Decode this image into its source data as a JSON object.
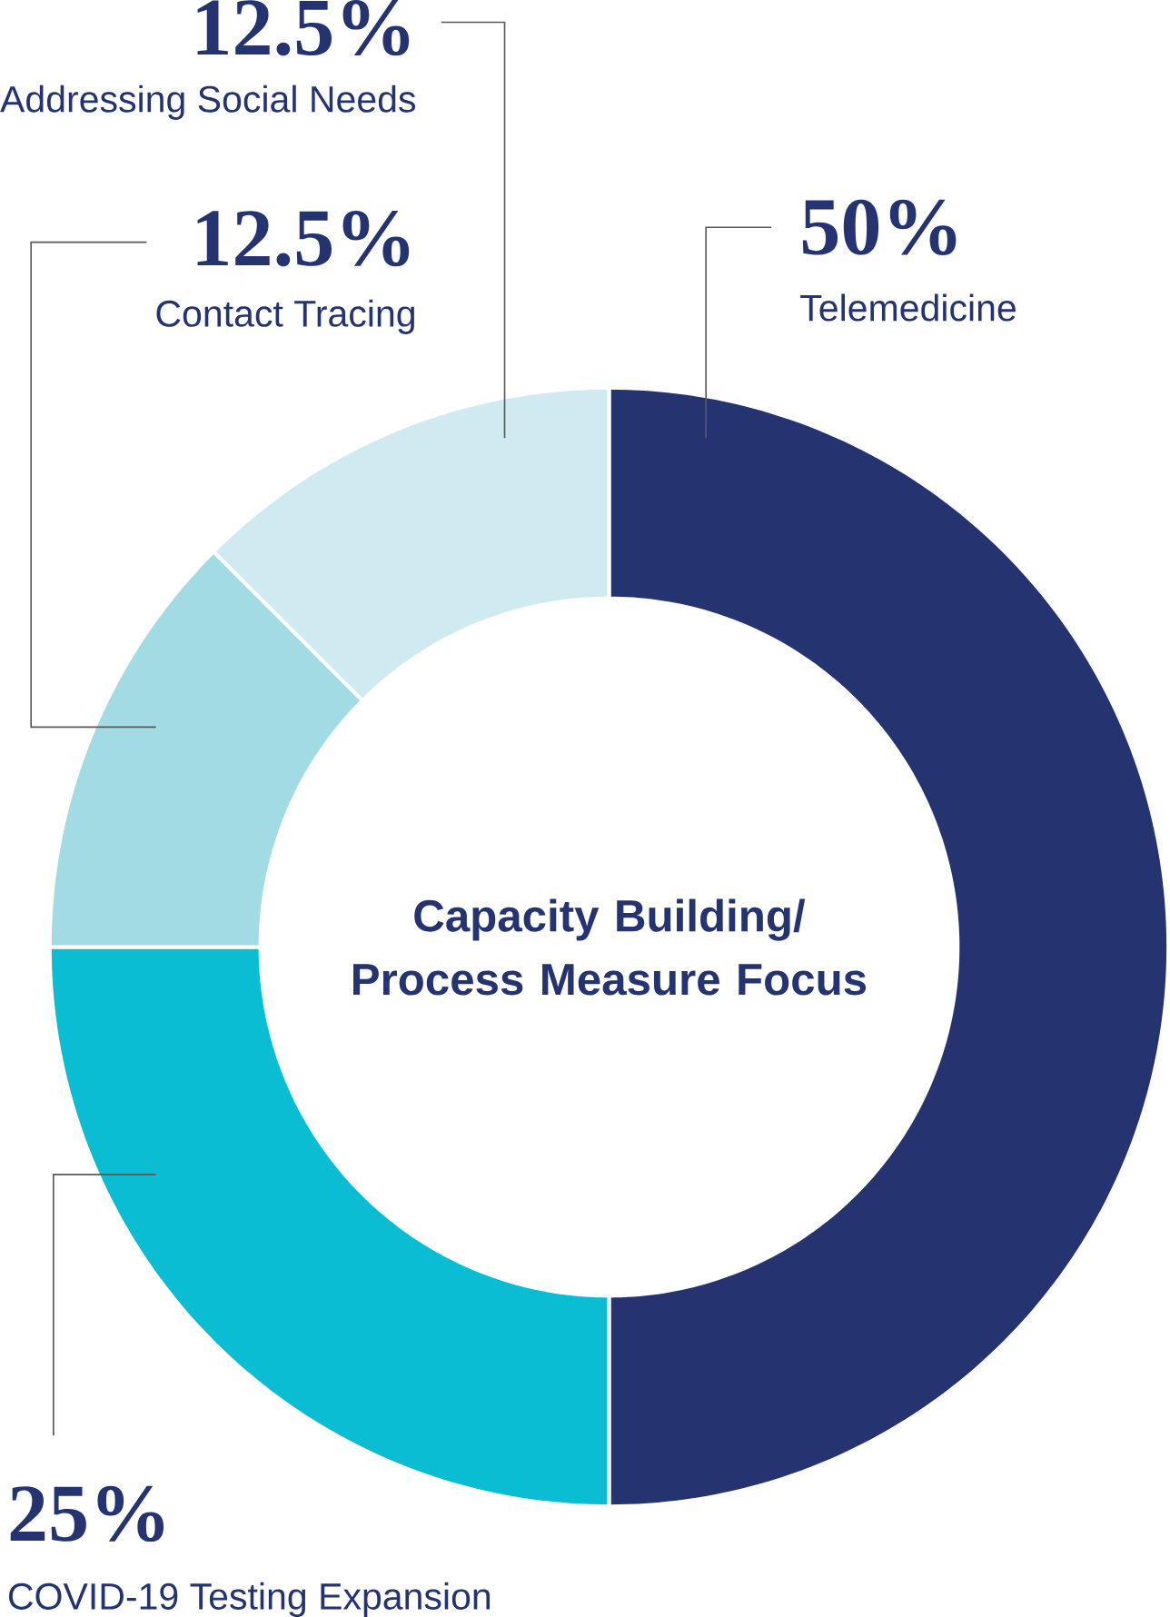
{
  "chart_data": {
    "type": "donut",
    "title": "Capacity Building/ Process Measure Focus",
    "categories": [
      "Telemedicine",
      "COVID-19 Testing Expansion",
      "Contact Tracing",
      "Addressing Social Needs"
    ],
    "values": [
      50,
      25,
      12.5,
      12.5
    ],
    "value_labels": [
      "50%",
      "25%",
      "12.5%",
      "12.5%"
    ],
    "colors": [
      "#253370",
      "#0abdd3",
      "#a3dbe5",
      "#cfeaf0"
    ]
  }
}
